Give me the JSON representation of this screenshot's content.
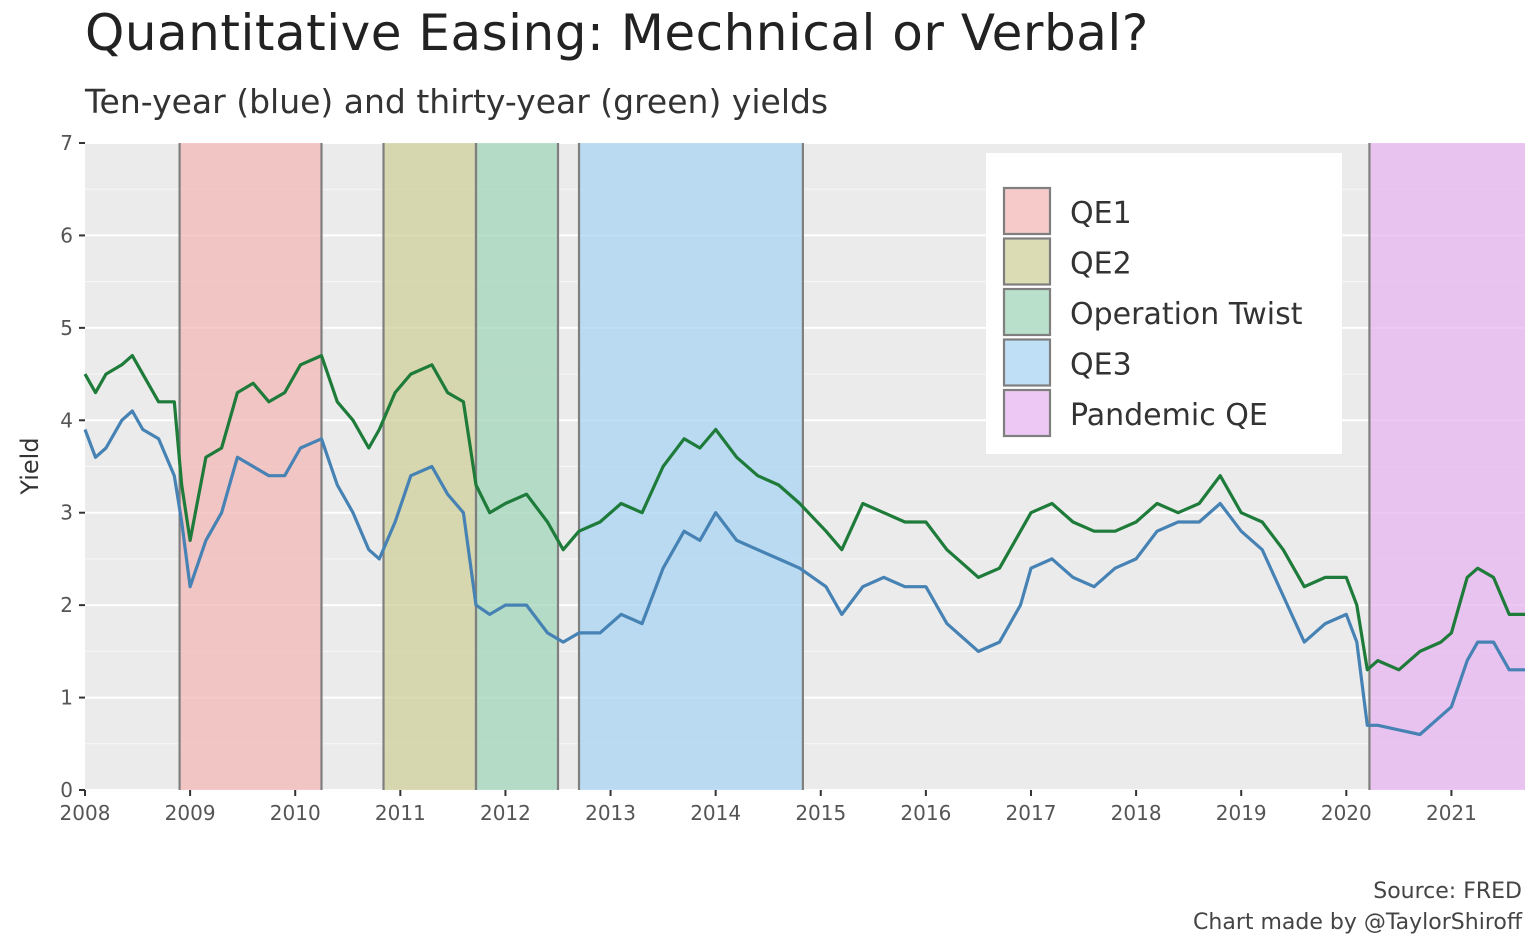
{
  "chart_data": {
    "type": "line",
    "title": "Quantitative Easing: Mechnical or Verbal?",
    "subtitle": "Ten-year (blue) and thirty-year (green) yields",
    "ylabel": "Yield",
    "xlabel": "",
    "ylim": [
      0,
      7
    ],
    "xlim": [
      2008.0,
      2021.7
    ],
    "y_ticks": [
      0,
      1,
      2,
      3,
      4,
      5,
      6,
      7
    ],
    "x_ticks": [
      "2008",
      "2009",
      "2010",
      "2011",
      "2012",
      "2013",
      "2014",
      "2015",
      "2016",
      "2017",
      "2018",
      "2019",
      "2020",
      "2021"
    ],
    "grid": true,
    "legend_position": "top-right",
    "colors": {
      "panel_background": "#EBEBEB",
      "grid": "#FFFFFF",
      "ten_year": "#4682B4",
      "thirty_year": "#1E7B3A",
      "band_border": "#7F7F7F"
    },
    "shaded_periods": [
      {
        "name": "QE1",
        "start": 2008.9,
        "end": 2010.25,
        "color": "#F4B6B6"
      },
      {
        "name": "QE2",
        "start": 2010.84,
        "end": 2011.72,
        "color": "#CDCF95"
      },
      {
        "name": "Operation Twist",
        "start": 2011.72,
        "end": 2012.5,
        "color": "#9ED4B6"
      },
      {
        "name": "QE3",
        "start": 2012.7,
        "end": 2014.83,
        "color": "#A5D2F2"
      },
      {
        "name": "Pandemic QE",
        "start": 2020.22,
        "end": 2021.7,
        "color": "#E7B3F0"
      }
    ],
    "series": [
      {
        "name": "Ten-year",
        "color": "#4682B4",
        "x": [
          2008.0,
          2008.1,
          2008.2,
          2008.35,
          2008.45,
          2008.55,
          2008.7,
          2008.85,
          2008.92,
          2009.0,
          2009.15,
          2009.3,
          2009.45,
          2009.6,
          2009.75,
          2009.9,
          2010.05,
          2010.25,
          2010.4,
          2010.55,
          2010.7,
          2010.8,
          2010.95,
          2011.1,
          2011.3,
          2011.45,
          2011.6,
          2011.72,
          2011.85,
          2012.0,
          2012.2,
          2012.4,
          2012.55,
          2012.7,
          2012.9,
          2013.1,
          2013.3,
          2013.5,
          2013.7,
          2013.85,
          2014.0,
          2014.2,
          2014.4,
          2014.6,
          2014.8,
          2015.05,
          2015.2,
          2015.4,
          2015.6,
          2015.8,
          2016.0,
          2016.2,
          2016.5,
          2016.7,
          2016.9,
          2017.0,
          2017.2,
          2017.4,
          2017.6,
          2017.8,
          2018.0,
          2018.2,
          2018.4,
          2018.6,
          2018.8,
          2019.0,
          2019.2,
          2019.4,
          2019.6,
          2019.8,
          2020.0,
          2020.1,
          2020.2,
          2020.3,
          2020.5,
          2020.7,
          2020.9,
          2021.0,
          2021.15,
          2021.25,
          2021.4,
          2021.55,
          2021.7
        ],
        "values": [
          3.9,
          3.6,
          3.7,
          4.0,
          4.1,
          3.9,
          3.8,
          3.4,
          2.9,
          2.2,
          2.7,
          3.0,
          3.6,
          3.5,
          3.4,
          3.4,
          3.7,
          3.8,
          3.3,
          3.0,
          2.6,
          2.5,
          2.9,
          3.4,
          3.5,
          3.2,
          3.0,
          2.0,
          1.9,
          2.0,
          2.0,
          1.7,
          1.6,
          1.7,
          1.7,
          1.9,
          1.8,
          2.4,
          2.8,
          2.7,
          3.0,
          2.7,
          2.6,
          2.5,
          2.4,
          2.2,
          1.9,
          2.2,
          2.3,
          2.2,
          2.2,
          1.8,
          1.5,
          1.6,
          2.0,
          2.4,
          2.5,
          2.3,
          2.2,
          2.4,
          2.5,
          2.8,
          2.9,
          2.9,
          3.1,
          2.8,
          2.6,
          2.1,
          1.6,
          1.8,
          1.9,
          1.6,
          0.7,
          0.7,
          0.65,
          0.6,
          0.8,
          0.9,
          1.4,
          1.6,
          1.6,
          1.3,
          1.3
        ]
      },
      {
        "name": "Thirty-year",
        "color": "#1E7B3A",
        "x": [
          2008.0,
          2008.1,
          2008.2,
          2008.35,
          2008.45,
          2008.55,
          2008.7,
          2008.85,
          2008.92,
          2009.0,
          2009.15,
          2009.3,
          2009.45,
          2009.6,
          2009.75,
          2009.9,
          2010.05,
          2010.25,
          2010.4,
          2010.55,
          2010.7,
          2010.8,
          2010.95,
          2011.1,
          2011.3,
          2011.45,
          2011.6,
          2011.72,
          2011.85,
          2012.0,
          2012.2,
          2012.4,
          2012.55,
          2012.7,
          2012.9,
          2013.1,
          2013.3,
          2013.5,
          2013.7,
          2013.85,
          2014.0,
          2014.2,
          2014.4,
          2014.6,
          2014.8,
          2015.05,
          2015.2,
          2015.4,
          2015.6,
          2015.8,
          2016.0,
          2016.2,
          2016.5,
          2016.7,
          2016.9,
          2017.0,
          2017.2,
          2017.4,
          2017.6,
          2017.8,
          2018.0,
          2018.2,
          2018.4,
          2018.6,
          2018.8,
          2019.0,
          2019.2,
          2019.4,
          2019.6,
          2019.8,
          2020.0,
          2020.1,
          2020.2,
          2020.3,
          2020.5,
          2020.7,
          2020.9,
          2021.0,
          2021.15,
          2021.25,
          2021.4,
          2021.55,
          2021.7
        ],
        "values": [
          4.5,
          4.3,
          4.5,
          4.6,
          4.7,
          4.5,
          4.2,
          4.2,
          3.3,
          2.7,
          3.6,
          3.7,
          4.3,
          4.4,
          4.2,
          4.3,
          4.6,
          4.7,
          4.2,
          4.0,
          3.7,
          3.9,
          4.3,
          4.5,
          4.6,
          4.3,
          4.2,
          3.3,
          3.0,
          3.1,
          3.2,
          2.9,
          2.6,
          2.8,
          2.9,
          3.1,
          3.0,
          3.5,
          3.8,
          3.7,
          3.9,
          3.6,
          3.4,
          3.3,
          3.1,
          2.8,
          2.6,
          3.1,
          3.0,
          2.9,
          2.9,
          2.6,
          2.3,
          2.4,
          2.8,
          3.0,
          3.1,
          2.9,
          2.8,
          2.8,
          2.9,
          3.1,
          3.0,
          3.1,
          3.4,
          3.0,
          2.9,
          2.6,
          2.2,
          2.3,
          2.3,
          2.0,
          1.3,
          1.4,
          1.3,
          1.5,
          1.6,
          1.7,
          2.3,
          2.4,
          2.3,
          1.9,
          1.9
        ]
      }
    ]
  },
  "caption": {
    "source": "Source: FRED",
    "credit": "Chart made by @TaylorShiroff"
  }
}
